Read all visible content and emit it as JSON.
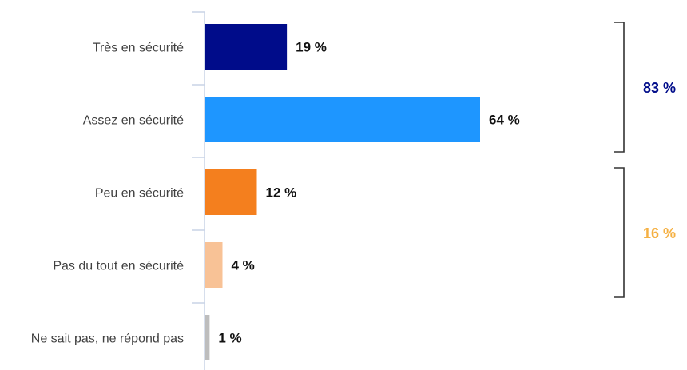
{
  "chart_data": {
    "type": "bar",
    "orientation": "horizontal",
    "categories": [
      "Très en sécurité",
      "Assez en sécurité",
      "Peu en sécurité",
      "Pas du tout en sécurité",
      "Ne sait pas, ne répond pas"
    ],
    "values": [
      19,
      64,
      12,
      4,
      1
    ],
    "value_labels": [
      "19 %",
      "64 %",
      "12 %",
      "4 %",
      "1 %"
    ],
    "bar_colors": [
      "#000c8a",
      "#1e96ff",
      "#f47f1e",
      "#f8c296",
      "#bdbdbd"
    ],
    "title": "",
    "xlabel": "",
    "ylabel": "",
    "xlim": [
      0,
      64
    ],
    "grid": false,
    "groups": [
      {
        "label": "83 %",
        "value": 83,
        "covers": [
          0,
          1
        ],
        "color": "#000c8a"
      },
      {
        "label": "16 %",
        "value": 16,
        "covers": [
          2,
          3
        ],
        "color": "#f5b042"
      }
    ]
  }
}
